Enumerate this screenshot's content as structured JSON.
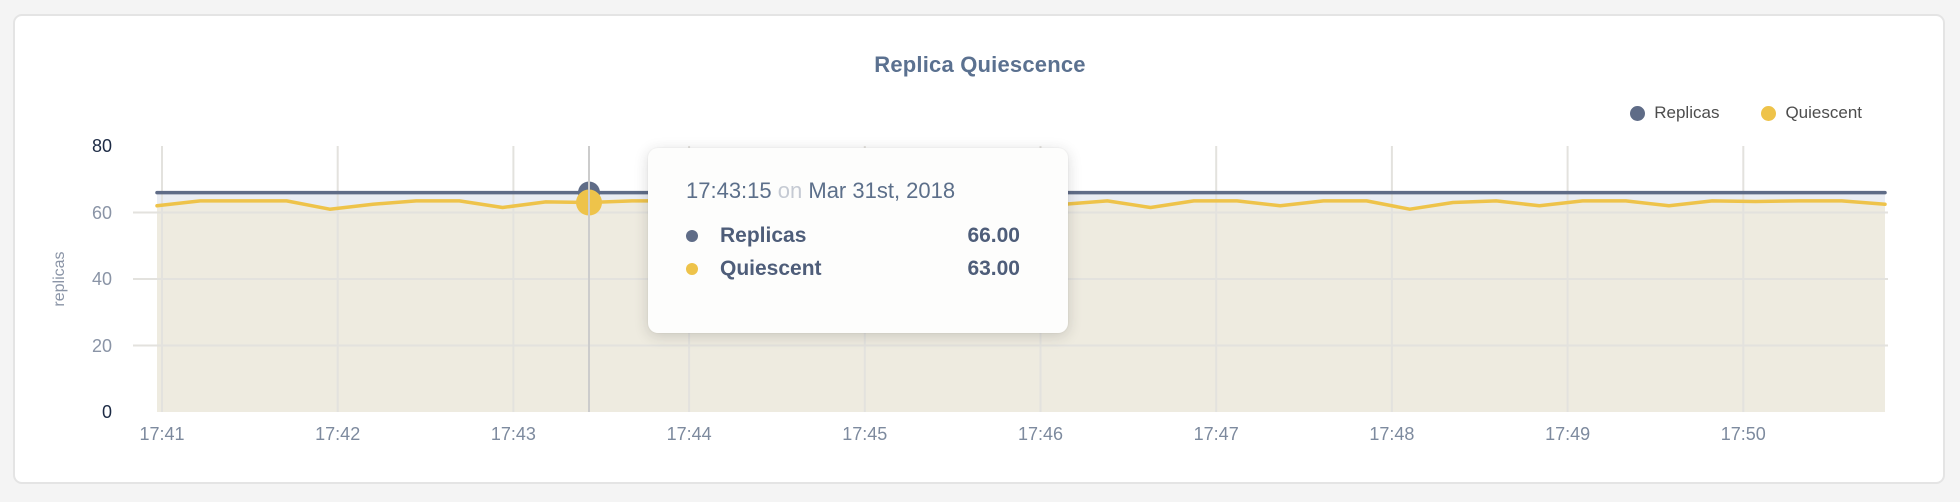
{
  "colors": {
    "page_background": "#f4f4f4",
    "card_background": "#ffffff",
    "card_border": "#e4e4e4",
    "title_text": "#5b7190",
    "legend_text": "#4d4d4d",
    "axis_tick_dark": "#1c2a44",
    "axis_tick_light": "#8a94a6",
    "x_tick_text": "#7d8a9e",
    "gridline": "#e3e2de",
    "hover_line": "#cccccc",
    "replicas_line": "#5f6c87",
    "replicas_fill": "#eaedf3",
    "quiescent_line": "#eec34a",
    "quiescent_fill": "#eeebe0",
    "tooltip_text": "#5c6f8a",
    "tooltip_muted": "#c5cad3"
  },
  "chart_data": {
    "type": "line",
    "title": "Replica Quiescence",
    "ylabel": "replicas",
    "xlabel": "",
    "ylim": [
      0,
      80
    ],
    "y_ticks": [
      0,
      20,
      40,
      60,
      80
    ],
    "x_ticks": [
      "17:41",
      "17:42",
      "17:43",
      "17:44",
      "17:45",
      "17:46",
      "17:47",
      "17:48",
      "17:49",
      "17:50"
    ],
    "x_start": "17:40:45",
    "x_end": "17:50:45",
    "interval_seconds": 15,
    "grid": true,
    "legend_position": "top-right",
    "series": [
      {
        "name": "Replicas",
        "color": "#5f6c87",
        "fill": "#eaedf3",
        "values": [
          66,
          66,
          66,
          66,
          66,
          66,
          66,
          66,
          66,
          66,
          66,
          66,
          66,
          66,
          66,
          66,
          66,
          66,
          66,
          66,
          66,
          66,
          66,
          66,
          66,
          66,
          66,
          66,
          66,
          66,
          66,
          66,
          66,
          66,
          66,
          66,
          66,
          66,
          66,
          66,
          66
        ]
      },
      {
        "name": "Quiescent",
        "color": "#eec34a",
        "fill": "#eeebe0",
        "values": [
          62,
          63.5,
          63.5,
          63.5,
          61,
          62.5,
          63.5,
          63.5,
          61.5,
          63.2,
          63,
          63.5,
          63.5,
          63.5,
          62.5,
          63.5,
          63.5,
          62,
          63.5,
          63.5,
          63.5,
          62.5,
          63.5,
          61.5,
          63.5,
          63.5,
          62,
          63.5,
          63.5,
          61,
          63,
          63.5,
          62,
          63.5,
          63.5,
          62,
          63.5,
          63.3,
          63.5,
          63.5,
          62.5
        ]
      }
    ],
    "hover": {
      "index": 10,
      "time": "17:43:15"
    }
  },
  "tooltip": {
    "time": "17:43:15",
    "connector": "on",
    "date": "Mar 31st, 2018",
    "rows": [
      {
        "label": "Replicas",
        "value": "66.00",
        "color": "#5f6c87"
      },
      {
        "label": "Quiescent",
        "value": "63.00",
        "color": "#eec34a"
      }
    ]
  }
}
